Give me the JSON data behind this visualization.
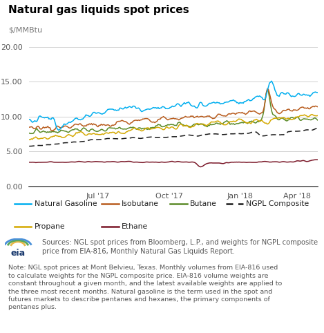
{
  "title": "Natural gas liquids spot prices",
  "ylabel": "$/MMBtu",
  "ylim": [
    0,
    21
  ],
  "yticks": [
    0.0,
    5.0,
    10.0,
    15.0,
    20.0
  ],
  "xtick_labels": [
    "Jul '17",
    "Oct '17",
    "Jan '18",
    "Apr '18"
  ],
  "bg_color": "#ffffff",
  "legend_bg": "#e8e8e8",
  "grid_color": "#c8c8c8",
  "colors": {
    "Natural Gasoline": "#00aeef",
    "Isobutane": "#b85c1e",
    "Butane": "#5a8a28",
    "NGPL Composite": "#1a1a1a",
    "Propane": "#d4a800",
    "Ethane": "#7a1828"
  },
  "source_text": "Sources: NGL spot prices from Bloomberg, L.P., and weights for NGPL composite\nprice from EIA-816, Monthly Natural Gas Liquids Report.",
  "note_text": "Note: NGL spot prices at Mont Belvieu, Texas. Monthly volumes from EIA-816 used\nto calculate weights for the NGPL composite price. EIA-816 volume weights are\nconstant throughout a given month, and the latest available weights are applied to\nthe three most recent months. Natural gasoline is the term used in the spot and\nfutures markets to describe pentanes and hexanes, the primary components of\npentanes plus.",
  "n_points": 265,
  "xtick_positions": [
    63,
    128,
    193,
    245
  ]
}
